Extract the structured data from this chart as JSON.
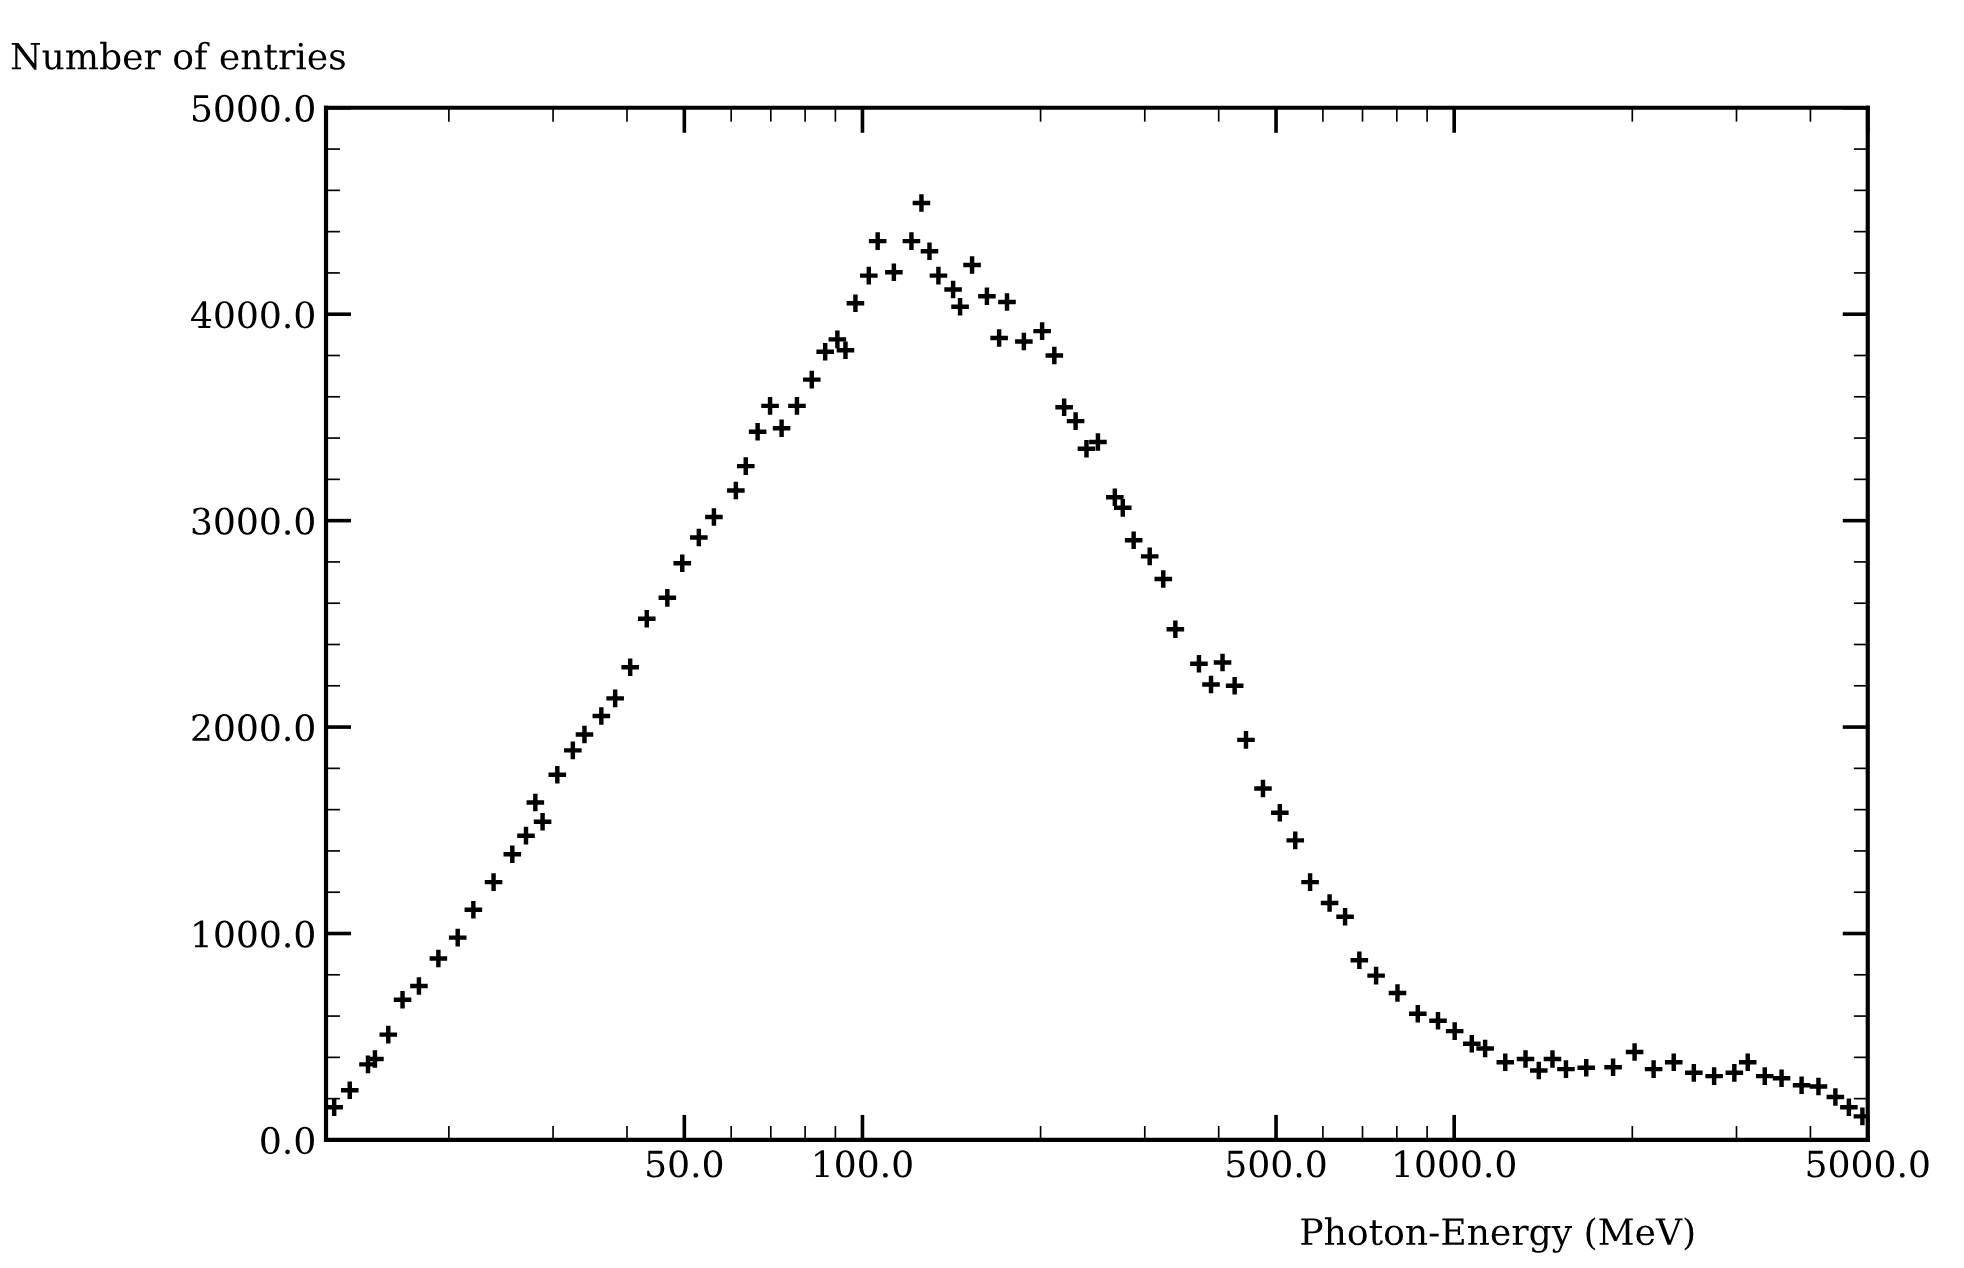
{
  "chart_data": {
    "type": "scatter",
    "xlabel": "Photon-Energy (MeV)",
    "ylabel": "Number of entries",
    "log": "x",
    "xlim": [
      12.4,
      5000
    ],
    "ylim": [
      0,
      5000
    ],
    "xticks": [
      {
        "value": 50,
        "label": "50.0"
      },
      {
        "value": 100,
        "label": "100.0"
      },
      {
        "value": 500,
        "label": "500.0"
      },
      {
        "value": 1000,
        "label": "1000.0"
      },
      {
        "value": 5000,
        "label": "5000.0"
      }
    ],
    "yticks": [
      {
        "value": 0,
        "label": "0.0"
      },
      {
        "value": 1000,
        "label": "1000.0"
      },
      {
        "value": 2000,
        "label": "2000.0"
      },
      {
        "value": 3000,
        "label": "3000.0"
      },
      {
        "value": 4000,
        "label": "4000.0"
      },
      {
        "value": 5000,
        "label": "5000.0"
      }
    ],
    "marker": "cross",
    "grid": false,
    "legend": false,
    "series": [
      {
        "color": "#000000",
        "x": [
          12.8,
          13.6,
          14.6,
          15.0,
          15.8,
          16.7,
          17.8,
          19.2,
          20.7,
          22.0,
          23.8,
          25.6,
          27.0,
          28.0,
          28.8,
          30.5,
          32.4,
          33.9,
          36.2,
          38.2,
          40.5,
          43.2,
          46.8,
          49.6,
          52.9,
          56.1,
          61.1,
          63.5,
          66.5,
          69.8,
          73.0,
          77.5,
          82.1,
          86.5,
          90.7,
          93.6,
          97.3,
          102.5,
          106.1,
          113.0,
          121.0,
          125.8,
          129.8,
          134.4,
          142.3,
          146.2,
          153.2,
          162.3,
          170.2,
          175.5,
          187.4,
          201.2,
          211,
          219.2,
          229.2,
          239.1,
          250,
          267,
          275.4,
          287.3,
          305.8,
          322.4,
          337.9,
          370.4,
          388.2,
          406,
          425.6,
          444.8,
          475.2,
          507.4,
          538.8,
          570.8,
          615.8,
          654.1,
          691.4,
          738,
          802,
          868,
          939,
          1002,
          1071,
          1128,
          1220,
          1320,
          1390,
          1466,
          1545,
          1672,
          1856,
          2018,
          2173,
          2350,
          2541,
          2750,
          2975,
          3134,
          3349,
          3575,
          3865,
          4127,
          4408,
          4646,
          4897
        ],
        "values": [
          158,
          241,
          366,
          392,
          510,
          679,
          746,
          879,
          980,
          1115,
          1249,
          1384,
          1474,
          1635,
          1541,
          1769,
          1887,
          1964,
          2054,
          2139,
          2290,
          2525,
          2626,
          2794,
          2918,
          3018,
          3146,
          3264,
          3431,
          3556,
          3448,
          3556,
          3683,
          3818,
          3878,
          3825,
          4053,
          4187,
          4354,
          4203,
          4354,
          4539,
          4305,
          4187,
          4120,
          4036,
          4238,
          4087,
          3885,
          4059,
          3868,
          3918,
          3800,
          3549,
          3482,
          3348,
          3381,
          3113,
          3062,
          2905,
          2827,
          2717,
          2474,
          2307,
          2206,
          2313,
          2200,
          1938,
          1702,
          1585,
          1451,
          1249,
          1148,
          1081,
          870,
          796,
          712,
          611,
          577,
          527,
          466,
          443,
          376,
          392,
          336,
          392,
          343,
          350,
          352,
          426,
          343,
          376,
          325,
          309,
          325,
          376,
          309,
          299,
          265,
          259,
          208,
          158,
          114
        ]
      }
    ]
  }
}
